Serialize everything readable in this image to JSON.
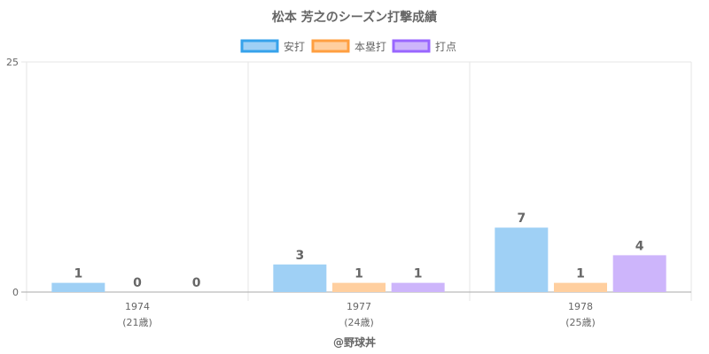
{
  "chart_data": {
    "type": "bar",
    "title": "松本 芳之のシーズン打撃成績",
    "categories": [
      "1974",
      "1977",
      "1978"
    ],
    "category_sublabels": [
      "(21歳)",
      "(24歳)",
      "(25歳)"
    ],
    "series": [
      {
        "name": "安打",
        "values": [
          1,
          3,
          7
        ],
        "fill": "#9fd0f5",
        "stroke": "#36a2eb"
      },
      {
        "name": "本塁打",
        "values": [
          0,
          1,
          1
        ],
        "fill": "#ffcf9f",
        "stroke": "#ff9f40"
      },
      {
        "name": "打点",
        "values": [
          0,
          1,
          4
        ],
        "fill": "#cdb5fb",
        "stroke": "#9966ff"
      }
    ],
    "ylim": [
      0,
      25
    ],
    "y_ticks": [
      "0",
      "25"
    ],
    "legend_position": "top",
    "grid": true,
    "credit": "@野球丼"
  }
}
